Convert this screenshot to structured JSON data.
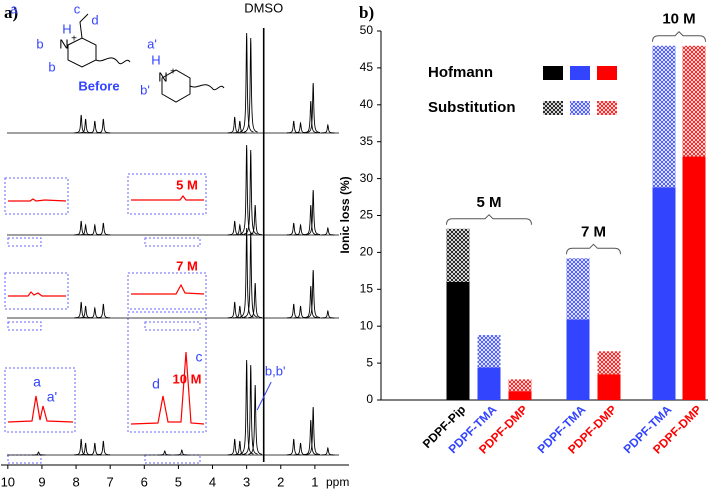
{
  "chart_data": [
    {
      "type": "nmr",
      "panel_label": "a)",
      "xlabel": "ppm",
      "xlim": [
        10.2,
        0
      ],
      "xticks": [
        10,
        9,
        8,
        7,
        6,
        5,
        4,
        3,
        2,
        1
      ],
      "series": [
        {
          "name": "Before",
          "color": "#000000",
          "label_color": "#3344ff",
          "x": [
            7.85,
            7.72,
            7.45,
            7.2,
            3.35,
            3.2,
            3.0,
            2.88,
            1.62,
            1.42,
            1.12,
            1.05,
            0.62
          ],
          "values": [
            18,
            14,
            12,
            14,
            16,
            12,
            100,
            95,
            12,
            10,
            32,
            50,
            8
          ]
        },
        {
          "name": "5 M",
          "color": "#000000",
          "label_color": "#ff0000",
          "x": [
            7.85,
            7.72,
            7.45,
            7.2,
            3.35,
            3.2,
            3.0,
            2.88,
            2.75,
            1.62,
            1.42,
            1.12,
            1.05,
            0.62
          ],
          "values": [
            14,
            10,
            10,
            12,
            14,
            10,
            90,
            85,
            30,
            12,
            10,
            30,
            45,
            7
          ]
        },
        {
          "name": "7 M",
          "color": "#000000",
          "label_color": "#ff0000",
          "x": [
            7.85,
            7.72,
            7.45,
            7.2,
            3.35,
            3.2,
            3.0,
            2.88,
            2.75,
            1.62,
            1.42,
            1.12,
            1.05,
            0.62
          ],
          "values": [
            16,
            12,
            10,
            14,
            16,
            12,
            90,
            85,
            35,
            14,
            12,
            32,
            48,
            7
          ]
        },
        {
          "name": "10 M",
          "color": "#000000",
          "label_color": "#ff0000",
          "x": [
            9.1,
            7.85,
            7.72,
            7.45,
            7.2,
            5.4,
            4.9,
            3.35,
            3.2,
            3.0,
            2.88,
            2.75,
            1.62,
            1.42,
            1.12,
            1.05,
            0.62
          ],
          "values": [
            3,
            16,
            12,
            12,
            14,
            4,
            5,
            16,
            14,
            95,
            90,
            70,
            16,
            12,
            35,
            48,
            7
          ]
        }
      ],
      "annotations": [
        {
          "text": "DMSO",
          "x": 2.5
        },
        {
          "text": "b,b'",
          "x": 2.75
        }
      ],
      "inset_labels": [
        "a",
        "a'",
        "d",
        "c"
      ],
      "structure_labels": [
        "a",
        "H",
        "b",
        "N",
        "+",
        "b",
        "c",
        "d",
        "a'",
        "H",
        "b'",
        "N",
        "+"
      ]
    },
    {
      "type": "bar",
      "stacked": true,
      "panel_label": "b)",
      "ylabel": "Ionic loss (%)",
      "ylim": [
        0,
        50
      ],
      "yticks": [
        0,
        5,
        10,
        15,
        20,
        25,
        30,
        35,
        40,
        45,
        50
      ],
      "categories": [
        "PDPF-Pip",
        "PDPF-TMA",
        "PDPF-DMP",
        "PDPF-TMA",
        "PDPF-DMP",
        "PDPF-TMA",
        "PDPF-DMP"
      ],
      "category_colors": [
        "#000000",
        "#3344ff",
        "#ff0000",
        "#3344ff",
        "#ff0000",
        "#3344ff",
        "#ff0000"
      ],
      "groups": [
        "5 M",
        "7 M",
        "10 M"
      ],
      "legend_colors": [
        "#000000",
        "#3344ff",
        "#ff0000"
      ],
      "series": [
        {
          "name": "Hofmann",
          "pattern": "solid",
          "values": [
            16,
            4.4,
            1.2,
            10.9,
            3.5,
            28.8,
            33
          ]
        },
        {
          "name": "Substitution",
          "pattern": "crosshatch",
          "values": [
            7.2,
            4.4,
            1.6,
            8.3,
            3.1,
            19.2,
            15
          ]
        }
      ]
    }
  ]
}
